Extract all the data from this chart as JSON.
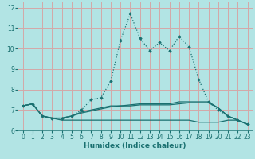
{
  "xlabel": "Humidex (Indice chaleur)",
  "background_color": "#b2e4e4",
  "grid_color": "#d4a8a8",
  "line_color": "#1a7070",
  "xlim": [
    -0.5,
    23.5
  ],
  "ylim": [
    6.0,
    12.3
  ],
  "yticks": [
    6,
    7,
    8,
    9,
    10,
    11,
    12
  ],
  "xticks": [
    0,
    1,
    2,
    3,
    4,
    5,
    6,
    7,
    8,
    9,
    10,
    11,
    12,
    13,
    14,
    15,
    16,
    17,
    18,
    19,
    20,
    21,
    22,
    23
  ],
  "series_main": [
    7.2,
    7.3,
    6.7,
    6.6,
    6.6,
    6.7,
    7.0,
    7.5,
    7.6,
    8.4,
    10.4,
    11.7,
    10.5,
    9.9,
    10.3,
    9.9,
    10.6,
    10.1,
    8.5,
    7.4,
    7.0,
    6.7,
    6.5,
    6.3
  ],
  "series_flat": [
    [
      7.2,
      7.3,
      6.7,
      6.6,
      6.6,
      6.7,
      6.9,
      7.0,
      7.1,
      7.2,
      7.2,
      7.2,
      7.25,
      7.25,
      7.25,
      7.25,
      7.3,
      7.35,
      7.35,
      7.35,
      7.1,
      6.7,
      6.5,
      6.3
    ],
    [
      7.2,
      7.3,
      6.7,
      6.6,
      6.5,
      6.5,
      6.5,
      6.5,
      6.5,
      6.5,
      6.5,
      6.5,
      6.5,
      6.5,
      6.5,
      6.5,
      6.5,
      6.5,
      6.4,
      6.4,
      6.4,
      6.5,
      6.5,
      6.3
    ],
    [
      7.2,
      7.3,
      6.7,
      6.6,
      6.6,
      6.7,
      6.85,
      6.95,
      7.05,
      7.15,
      7.2,
      7.25,
      7.3,
      7.3,
      7.3,
      7.3,
      7.4,
      7.4,
      7.4,
      7.4,
      7.1,
      6.7,
      6.5,
      6.3
    ]
  ]
}
